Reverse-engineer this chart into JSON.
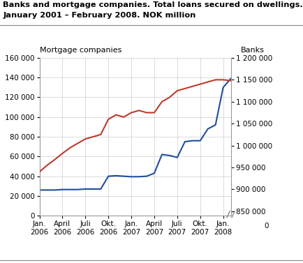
{
  "title_line1": "Banks and mortgage companies. Total loans secured on dwellings.",
  "title_line2": "January 2001 – February 2008. NOK million",
  "ylabel_left": "Mortgage companies",
  "ylabel_right": "Banks",
  "ylim_left": [
    0,
    160000
  ],
  "ylim_right": [
    840000,
    1200000
  ],
  "yticks_left": [
    0,
    20000,
    40000,
    60000,
    80000,
    100000,
    120000,
    140000,
    160000
  ],
  "yticks_right": [
    850000,
    900000,
    950000,
    1000000,
    1050000,
    1100000,
    1150000,
    1200000
  ],
  "xtick_labels": [
    "Jan.\n2006",
    "April\n2006",
    "Juli\n2006",
    "Okt.\n2006",
    "Jan.\n2007",
    "April\n2007",
    "Juli\n2007",
    "Okt.\n2007",
    "Jan.\n2008"
  ],
  "mortgage_x": [
    0,
    1,
    2,
    3,
    4,
    5,
    6,
    7,
    8,
    9,
    10,
    11,
    12,
    13,
    14,
    15,
    16,
    17,
    18,
    19,
    20,
    21,
    22,
    23,
    24,
    25
  ],
  "mortgage_y": [
    26000,
    26000,
    26000,
    26500,
    26500,
    26500,
    27000,
    27000,
    27000,
    40000,
    40500,
    40000,
    39500,
    39500,
    40000,
    43000,
    62000,
    61000,
    59000,
    75000,
    76000,
    76000,
    88000,
    92000,
    130000,
    139000
  ],
  "banks_x": [
    0,
    1,
    2,
    3,
    4,
    5,
    6,
    7,
    8,
    9,
    10,
    11,
    12,
    13,
    14,
    15,
    16,
    17,
    18,
    19,
    20,
    21,
    22,
    23,
    24,
    25
  ],
  "banks_y": [
    940000,
    955000,
    968000,
    982000,
    995000,
    1005000,
    1015000,
    1020000,
    1025000,
    1060000,
    1070000,
    1065000,
    1075000,
    1080000,
    1075000,
    1075000,
    1100000,
    1110000,
    1125000,
    1130000,
    1135000,
    1140000,
    1145000,
    1150000,
    1150000,
    1148000
  ],
  "mortgage_color": "#1f4e9e",
  "banks_color": "#c0392b",
  "grid_color": "#cccccc",
  "background_color": "#ffffff",
  "legend_mortgage": "Mortgage companies",
  "legend_banks": "Banks",
  "xtick_positions": [
    0,
    3,
    6,
    9,
    12,
    15,
    18,
    21,
    24
  ]
}
